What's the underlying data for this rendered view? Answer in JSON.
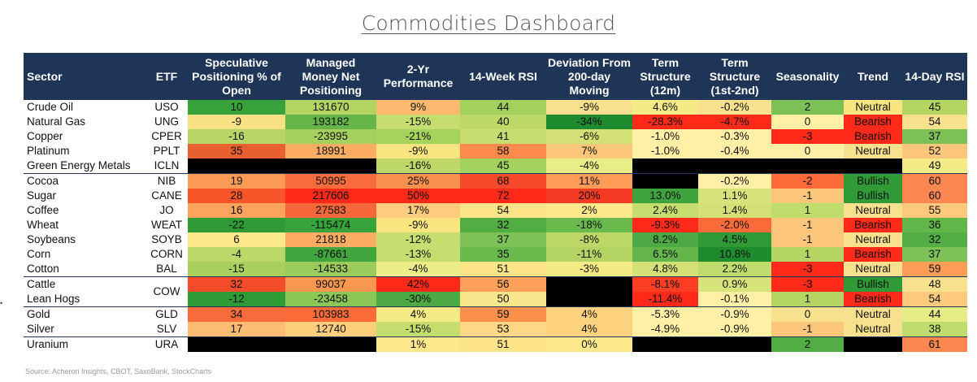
{
  "title": "Commodities Dashboard",
  "headers": [
    "Sector",
    "ETF",
    "Speculative Positioning % of Open",
    "Managed Money Net Positioning",
    "2-Yr Performance",
    "14-Week RSI",
    "Deviation From 200-day Moving",
    "Term Structure (12m)",
    "Term Structure (1st-2nd)",
    "Seasonality",
    "Trend",
    "14-Day RSI"
  ],
  "rows": [
    {
      "sector": "Crude Oil",
      "etf": "USO",
      "spec": "10",
      "mm": "131670",
      "perf": "9%",
      "rsi14w": "44",
      "dev": "-9%",
      "ts12": "4.6%",
      "ts12nd": "-0.2%",
      "season": "2",
      "trend": "Neutral",
      "rsi14d": "45"
    },
    {
      "sector": "Natural Gas",
      "etf": "UNG",
      "spec": "-9",
      "mm": "193182",
      "perf": "-15%",
      "rsi14w": "40",
      "dev": "-34%",
      "ts12": "-28.3%",
      "ts12nd": "-4.7%",
      "season": "0",
      "trend": "Bearish",
      "rsi14d": "54"
    },
    {
      "sector": "Copper",
      "etf": "CPER",
      "spec": "-16",
      "mm": "-23995",
      "perf": "-21%",
      "rsi14w": "41",
      "dev": "-6%",
      "ts12": "-1.0%",
      "ts12nd": "-0.3%",
      "season": "-3",
      "trend": "Bearish",
      "rsi14d": "37"
    },
    {
      "sector": "Platinum",
      "etf": "PPLT",
      "spec": "35",
      "mm": "18991",
      "perf": "-9%",
      "rsi14w": "58",
      "dev": "7%",
      "ts12": "-1.0%",
      "ts12nd": "-0.4%",
      "season": "0",
      "trend": "Neutral",
      "rsi14d": "52"
    },
    {
      "sector": "Green Energy Metals",
      "etf": "ICLN",
      "spec": "",
      "mm": "",
      "perf": "-16%",
      "rsi14w": "45",
      "dev": "-4%",
      "ts12": "",
      "ts12nd": "",
      "season": "",
      "trend": "",
      "rsi14d": "49"
    },
    {
      "sector": "Cocoa",
      "etf": "NIB",
      "spec": "19",
      "mm": "50995",
      "perf": "25%",
      "rsi14w": "68",
      "dev": "11%",
      "ts12": "",
      "ts12nd": "-0.2%",
      "season": "-2",
      "trend": "Bullish",
      "rsi14d": "60"
    },
    {
      "sector": "Sugar",
      "etf": "CANE",
      "spec": "28",
      "mm": "217606",
      "perf": "50%",
      "rsi14w": "72",
      "dev": "20%",
      "ts12": "13.0%",
      "ts12nd": "1.1%",
      "season": "-1",
      "trend": "Bullish",
      "rsi14d": "60"
    },
    {
      "sector": "Coffee",
      "etf": "JO",
      "spec": "16",
      "mm": "27583",
      "perf": "17%",
      "rsi14w": "54",
      "dev": "2%",
      "ts12": "2.4%",
      "ts12nd": "1.4%",
      "season": "1",
      "trend": "Neutral",
      "rsi14d": "55"
    },
    {
      "sector": "Wheat",
      "etf": "WEAT",
      "spec": "-22",
      "mm": "-115474",
      "perf": "-9%",
      "rsi14w": "32",
      "dev": "-18%",
      "ts12": "-9.3%",
      "ts12nd": "-2.0%",
      "season": "-1",
      "trend": "Bearish",
      "rsi14d": "36"
    },
    {
      "sector": "Soybeans",
      "etf": "SOYB",
      "spec": "6",
      "mm": "21818",
      "perf": "-12%",
      "rsi14w": "37",
      "dev": "-8%",
      "ts12": "8.2%",
      "ts12nd": "4.5%",
      "season": "-1",
      "trend": "Neutral",
      "rsi14d": "32"
    },
    {
      "sector": "Corn",
      "etf": "CORN",
      "spec": "-4",
      "mm": "-87661",
      "perf": "-13%",
      "rsi14w": "35",
      "dev": "-11%",
      "ts12": "6.5%",
      "ts12nd": "10.8%",
      "season": "1",
      "trend": "Bearish",
      "rsi14d": "37"
    },
    {
      "sector": "Cotton",
      "etf": "BAL",
      "spec": "-15",
      "mm": "-14533",
      "perf": "-4%",
      "rsi14w": "51",
      "dev": "-3%",
      "ts12": "4.8%",
      "ts12nd": "2.2%",
      "season": "-3",
      "trend": "Neutral",
      "rsi14d": "59"
    },
    {
      "sector": "Cattle",
      "etf": "COW",
      "spec": "32",
      "mm": "99037",
      "perf": "42%",
      "rsi14w": "56",
      "dev": "",
      "ts12": "-8.1%",
      "ts12nd": "0.9%",
      "season": "-3",
      "trend": "Bullish",
      "rsi14d": "48"
    },
    {
      "sector": "Lean Hogs",
      "etf": "",
      "spec": "-12",
      "mm": "-23458",
      "perf": "-30%",
      "rsi14w": "50",
      "dev": "",
      "ts12": "-11.4%",
      "ts12nd": "-0.1%",
      "season": "1",
      "trend": "Bearish",
      "rsi14d": "54"
    },
    {
      "sector": "Gold",
      "etf": "GLD",
      "spec": "34",
      "mm": "103983",
      "perf": "4%",
      "rsi14w": "59",
      "dev": "4%",
      "ts12": "-5.3%",
      "ts12nd": "-0.9%",
      "season": "0",
      "trend": "Neutral",
      "rsi14d": "44"
    },
    {
      "sector": "Silver",
      "etf": "SLV",
      "spec": "17",
      "mm": "12740",
      "perf": "-15%",
      "rsi14w": "53",
      "dev": "4%",
      "ts12": "-4.9%",
      "ts12nd": "-0.9%",
      "season": "-1",
      "trend": "Neutral",
      "rsi14d": "38"
    },
    {
      "sector": "Uranium",
      "etf": "URA",
      "spec": "",
      "mm": "",
      "perf": "1%",
      "rsi14w": "51",
      "dev": "0%",
      "ts12": "",
      "ts12nd": "",
      "season": "2",
      "trend": "",
      "rsi14d": "61"
    }
  ],
  "cell_colors": [
    [
      "#37a33a",
      "#b3d461",
      "#fdb970",
      "#a2d25d",
      "#f8e18e",
      "#f4eb86",
      "#f8e18e",
      "#7cc056",
      "#f9e580",
      "#b5d562"
    ],
    [
      "#f7e182",
      "#66b549",
      "#c5dc6f",
      "#bed867",
      "#1e8c2e",
      "#ff2a1a",
      "#ff2a1a",
      "#fff0a6",
      "#ff2a1a",
      "#f8e18e"
    ],
    [
      "#b7d565",
      "#a6d05e",
      "#a6d35c",
      "#c8dd6f",
      "#d3e177",
      "#fff0a6",
      "#fff0a6",
      "#ff2a1a",
      "#ff2a1a",
      "#7cc056"
    ],
    [
      "#e8602f",
      "#fdac63",
      "#f9e580",
      "#fd8a4d",
      "#fcc67b",
      "#fff0a6",
      "#fff0a6",
      "#fff0a6",
      "#f8e18e",
      "#fcc67b"
    ],
    [
      "#000000",
      "#000000",
      "#bed867",
      "#a2d25d",
      "#e9ed87",
      "#000000",
      "#000000",
      "#000000",
      "#000000",
      "#f4eb86"
    ],
    [
      "#fb9a55",
      "#f86c3b",
      "#fb8f4d",
      "#f64a2c",
      "#fd9b58",
      "#000000",
      "#fff0a6",
      "#fd6a3a",
      "#2f9a36",
      "#fd8750"
    ],
    [
      "#f8552b",
      "#ff2a1a",
      "#ff2a1a",
      "#ff2a1a",
      "#f63b25",
      "#3ea33e",
      "#d7e47b",
      "#fcc67b",
      "#2f9a36",
      "#fd8750"
    ],
    [
      "#fca35e",
      "#f6673a",
      "#fecc7c",
      "#fde489",
      "#fde98b",
      "#c8dd6f",
      "#d3e177",
      "#c0dc6c",
      "#f8e18e",
      "#fdc97d"
    ],
    [
      "#2f9a36",
      "#37a33a",
      "#f9e580",
      "#52ad44",
      "#6ab94d",
      "#ff2a1a",
      "#fc6a3a",
      "#fcc67b",
      "#ff2a1a",
      "#62b64a"
    ],
    [
      "#fde98b",
      "#fdac63",
      "#c8dd6f",
      "#7ec257",
      "#bed867",
      "#4ca943",
      "#2f9a36",
      "#fcc67b",
      "#f8e18e",
      "#52ad44"
    ],
    [
      "#bcd869",
      "#42a53d",
      "#c5dc6f",
      "#6ab94d",
      "#b3d462",
      "#64b64b",
      "#1e8c2e",
      "#b5d562",
      "#ff2a1a",
      "#7ec257"
    ],
    [
      "#a9d05e",
      "#9bcb5b",
      "#eced88",
      "#fde489",
      "#f4eb86",
      "#d3e177",
      "#c0dc6c",
      "#ff2a1a",
      "#f8e18e",
      "#fd9d57"
    ],
    [
      "#f54d2c",
      "#fc974f",
      "#ff2a1a",
      "#fda15a",
      "#000000",
      "#fc3f24",
      "#d7e47b",
      "#ff2a1a",
      "#2f9a36",
      "#f8e18e"
    ],
    [
      "#2f9a36",
      "#8bc657",
      "#4ca943",
      "#f8e58c",
      "#000000",
      "#ff2a1a",
      "#fff0a6",
      "#b5d562",
      "#ff2a1a",
      "#fdc97d"
    ],
    [
      "#f76c3a",
      "#fa6b38",
      "#f4eb86",
      "#fd904b",
      "#fdd27f",
      "#fff0a6",
      "#fff0a6",
      "#f8e18e",
      "#f8e18e",
      "#e5ec86"
    ],
    [
      "#fcbd72",
      "#fbcf7c",
      "#c5dc6f",
      "#fdd786",
      "#fdd27f",
      "#fff0a6",
      "#fff0a6",
      "#fcc67b",
      "#f8e18e",
      "#c0dc6c"
    ],
    [
      "#000000",
      "#000000",
      "#fde98b",
      "#fde489",
      "#fde98b",
      "#000000",
      "#000000",
      "#52ad44",
      "#000000",
      "#fd8750"
    ]
  ],
  "source": "Source: Acheron Insights, CBOT, SaxoBank, StockCharts",
  "marker": "•"
}
